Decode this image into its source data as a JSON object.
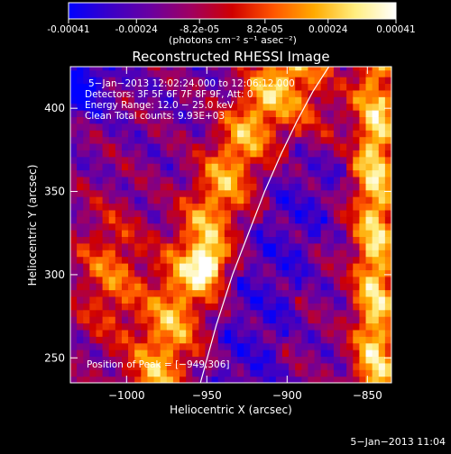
{
  "colorbar": {
    "tick_labels": [
      "-0.00041",
      "-0.00024",
      "-8.2e-05",
      "8.2e-05",
      "0.00024",
      "0.00041"
    ],
    "tick_values": [
      -0.00041,
      -0.00024,
      -8.2e-05,
      8.2e-05,
      0.00024,
      0.00041
    ],
    "range": [
      -0.00041,
      0.00041
    ],
    "unit_label": "(photons cm⁻² s⁻¹ asec⁻²)",
    "colormap": [
      "#0000ff",
      "#3a00c8",
      "#6a00a0",
      "#a00060",
      "#d00000",
      "#ff5500",
      "#ffaa00",
      "#ffee80",
      "#ffffff"
    ]
  },
  "chart_data": {
    "type": "heatmap",
    "title": "Reconstructed RHESSI Image",
    "xlabel": "Heliocentric X (arcsec)",
    "ylabel": "Heliocentric Y (arcsec)",
    "xlim": [
      -1035,
      -835
    ],
    "ylim": [
      235,
      425
    ],
    "x_ticks": [
      -1000,
      -950,
      -900,
      -850
    ],
    "x_tick_labels": [
      "−1000",
      "−950",
      "−900",
      "−850"
    ],
    "y_ticks": [
      250,
      300,
      350,
      400
    ],
    "y_tick_labels": [
      "250",
      "300",
      "350",
      "400"
    ],
    "grid": false,
    "annotations": [
      "5−Jan−2013 12:02:24.000 to 12:06:12.000",
      "Detectors: 3F 5F 6F 7F 8F 9F, Att: 0",
      "Energy Range: 12.0 − 25.0 keV",
      "Clean     Total counts: 9.93E+03"
    ],
    "peak_label": "Position of Peak = [−949,306]",
    "peak_position": [
      -949,
      306
    ],
    "limb_curve": {
      "x": [
        -954,
        -944,
        -934,
        -924,
        -914,
        -904,
        -894,
        -884,
        -874
      ],
      "y": [
        235,
        270,
        300,
        325,
        350,
        372,
        392,
        410,
        425
      ]
    }
  },
  "footer": {
    "timestamp": "5−Jan−2013 11:04"
  }
}
